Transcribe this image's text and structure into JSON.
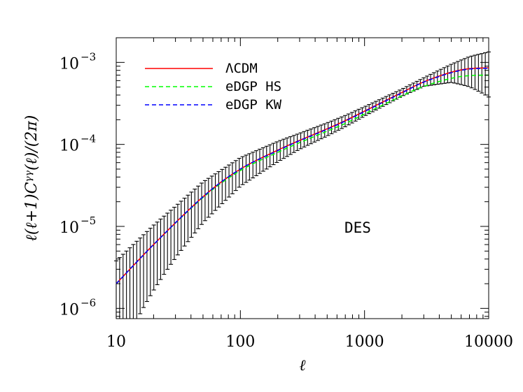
{
  "chart_data": {
    "type": "line",
    "title": "",
    "xlabel": "ℓ",
    "ylabel": "ℓ(ℓ+1)Cᵞᵞ(ℓ)/(2π)",
    "xscale": "log",
    "yscale": "log",
    "xlim": [
      10,
      10000
    ],
    "ylim": [
      7.5e-07,
      0.002
    ],
    "x_ticks": [
      {
        "value": 10,
        "label": "10"
      },
      {
        "value": 100,
        "label": "100"
      },
      {
        "value": 1000,
        "label": "1000"
      },
      {
        "value": 10000,
        "label": "10000"
      }
    ],
    "y_ticks": [
      {
        "value": 1e-06,
        "base": "10",
        "exp": "−6"
      },
      {
        "value": 1e-05,
        "base": "10",
        "exp": "−5"
      },
      {
        "value": 0.0001,
        "base": "10",
        "exp": "−4"
      },
      {
        "value": 0.001,
        "base": "10",
        "exp": "−3"
      }
    ],
    "grid": false,
    "legend": {
      "placement": "top-left"
    },
    "annotation": "DES",
    "series": [
      {
        "name": "ΛCDM",
        "color": "#ff0000",
        "style": "solid",
        "x": [
          10,
          20,
          50,
          100,
          200,
          300,
          500,
          700,
          1000,
          2000,
          3000,
          5000,
          7000,
          10000
        ],
        "y": [
          2e-06,
          6e-06,
          2.3e-05,
          5e-05,
          8.5e-05,
          0.000112,
          0.000155,
          0.000195,
          0.000255,
          0.00043,
          0.00058,
          0.00076,
          0.00084,
          0.00086
        ]
      },
      {
        "name": "eDGP HS",
        "color": "#00ff00",
        "style": "dashed",
        "x": [
          10,
          20,
          50,
          100,
          200,
          300,
          500,
          700,
          1000,
          2000,
          3000,
          5000,
          7000,
          10000
        ],
        "y": [
          2e-06,
          6e-06,
          2.25e-05,
          4.8e-05,
          8e-05,
          0.000105,
          0.000145,
          0.00018,
          0.000235,
          0.00039,
          0.00051,
          0.00064,
          0.00069,
          0.0007
        ]
      },
      {
        "name": "eDGP KW",
        "color": "#0000ff",
        "style": "dashed",
        "x": [
          10,
          20,
          50,
          100,
          200,
          300,
          500,
          700,
          1000,
          2000,
          3000,
          5000,
          7000,
          10000
        ],
        "y": [
          2e-06,
          6e-06,
          2.3e-05,
          5e-05,
          8.4e-05,
          0.000111,
          0.000153,
          0.000193,
          0.000252,
          0.000425,
          0.000575,
          0.00075,
          0.00083,
          0.00085
        ]
      }
    ],
    "error_bars": {
      "series": "ΛCDM",
      "color": "#000000",
      "count": 110,
      "x_range": [
        10,
        10000
      ],
      "relative_error": [
        {
          "x": 10,
          "frac": 0.9
        },
        {
          "x": 30,
          "frac": 0.62
        },
        {
          "x": 100,
          "frac": 0.38
        },
        {
          "x": 300,
          "frac": 0.22
        },
        {
          "x": 1000,
          "frac": 0.13
        },
        {
          "x": 2000,
          "frac": 0.1
        },
        {
          "x": 3000,
          "frac": 0.12
        },
        {
          "x": 5000,
          "frac": 0.25
        },
        {
          "x": 10000,
          "frac": 0.56
        }
      ]
    }
  }
}
